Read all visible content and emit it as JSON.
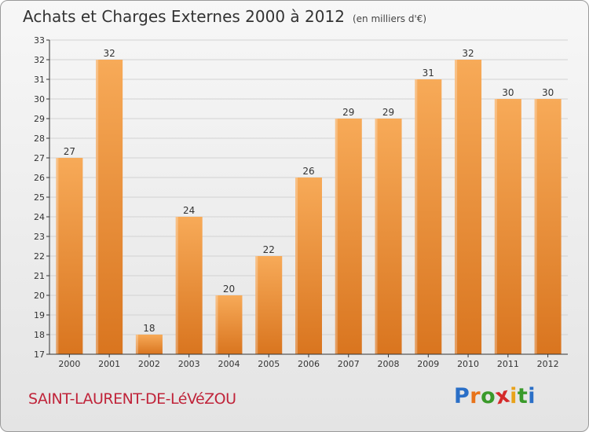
{
  "title": "Achats et Charges Externes 2000 à 2012",
  "subtitle": "(en milliers d'€)",
  "commune": "SAINT-LAURENT-DE-LéVéZOU",
  "logo": {
    "letters": [
      "P",
      "r",
      "o",
      "x",
      "i",
      "t",
      "i"
    ],
    "colors": [
      "#2a6fc7",
      "#e8731a",
      "#3a9a2a",
      "#d42a2a",
      "#e8a21a",
      "#3a9a2a",
      "#2a6fc7"
    ]
  },
  "colors": {
    "bar_light": "#f7a854",
    "bar_dark": "#d9751f",
    "axis": "#333333"
  },
  "chart_data": {
    "type": "bar",
    "categories": [
      "2000",
      "2001",
      "2002",
      "2003",
      "2004",
      "2005",
      "2006",
      "2007",
      "2008",
      "2009",
      "2010",
      "2011",
      "2012"
    ],
    "values": [
      27,
      32,
      18,
      24,
      20,
      22,
      26,
      29,
      29,
      31,
      32,
      30,
      30
    ],
    "ylim": [
      17,
      33
    ],
    "yticks": [
      17,
      18,
      19,
      20,
      21,
      22,
      23,
      24,
      25,
      26,
      27,
      28,
      29,
      30,
      31,
      32,
      33
    ],
    "grid": true,
    "title": "Achats et Charges Externes 2000 à 2012",
    "xlabel": "",
    "ylabel": ""
  }
}
